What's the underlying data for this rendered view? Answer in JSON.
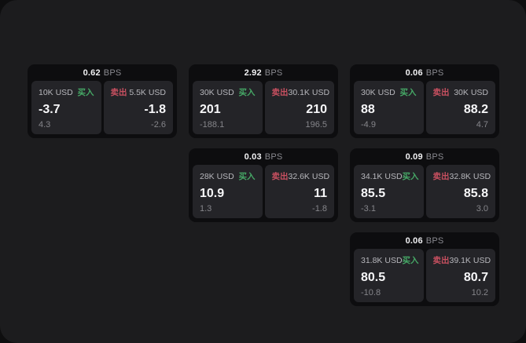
{
  "labels": {
    "buy": "买入",
    "sell": "卖出",
    "bps_unit": "BPS"
  },
  "colors": {
    "buy": "#46a866",
    "sell": "#c85060",
    "page_bg": "#1c1c1e",
    "card_bg": "#0d0d0f",
    "panel_bg": "#242428"
  },
  "cards": [
    {
      "row": 1,
      "col": 1,
      "bps": "0.62",
      "buy": {
        "amount": "10K USD",
        "price": "-3.7",
        "delta": "4.3"
      },
      "sell": {
        "amount": "5.5K USD",
        "price": "-1.8",
        "delta": "-2.6"
      }
    },
    {
      "row": 1,
      "col": 2,
      "bps": "2.92",
      "buy": {
        "amount": "30K USD",
        "price": "201",
        "delta": "-188.1"
      },
      "sell": {
        "amount": "30.1K USD",
        "price": "210",
        "delta": "196.5"
      }
    },
    {
      "row": 1,
      "col": 3,
      "bps": "0.06",
      "buy": {
        "amount": "30K USD",
        "price": "88",
        "delta": "-4.9"
      },
      "sell": {
        "amount": "30K USD",
        "price": "88.2",
        "delta": "4.7"
      }
    },
    {
      "row": 2,
      "col": 2,
      "bps": "0.03",
      "buy": {
        "amount": "28K USD",
        "price": "10.9",
        "delta": "1.3"
      },
      "sell": {
        "amount": "32.6K USD",
        "price": "11",
        "delta": "-1.8"
      }
    },
    {
      "row": 2,
      "col": 3,
      "bps": "0.09",
      "buy": {
        "amount": "34.1K USD",
        "price": "85.5",
        "delta": "-3.1"
      },
      "sell": {
        "amount": "32.8K USD",
        "price": "85.8",
        "delta": "3.0"
      }
    },
    {
      "row": 3,
      "col": 3,
      "bps": "0.06",
      "buy": {
        "amount": "31.8K USD",
        "price": "80.5",
        "delta": "-10.8"
      },
      "sell": {
        "amount": "39.1K USD",
        "price": "80.7",
        "delta": "10.2"
      }
    }
  ]
}
